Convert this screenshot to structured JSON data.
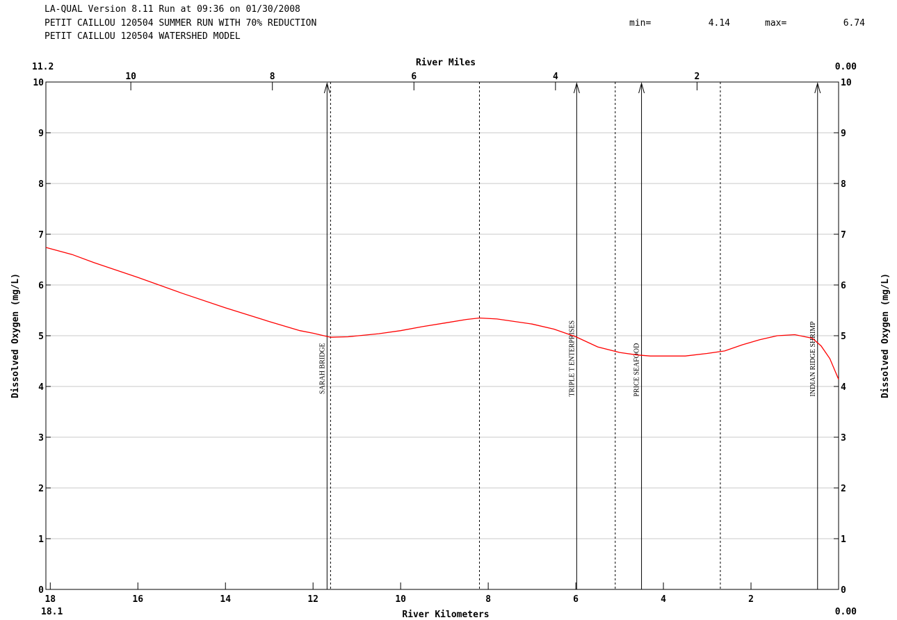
{
  "header": {
    "line1": "LA-QUAL Version 8.11  Run at 09:36 on 01/30/2008",
    "line2": "PETIT CAILLOU 120504 SUMMER RUN WITH 70% REDUCTION",
    "line3": "PETIT CAILLOU 120504 WATERSHED MODEL",
    "min_label": "min=",
    "min_value": "4.14",
    "max_label": "max=",
    "max_value": "6.74"
  },
  "chart_data": {
    "type": "line",
    "title": "",
    "xlabel": "River Kilometers",
    "x2label": "River Miles",
    "ylabel": "Dissolved Oxygen (mg/L)",
    "y2label": "Dissolved Oxygen (mg/L)",
    "xlim": [
      18.1,
      0.0
    ],
    "x2lim": [
      11.2,
      0.0
    ],
    "ylim": [
      0,
      10
    ],
    "x_edge_labels": {
      "left": "18.1",
      "right": "0.00"
    },
    "x2_edge_labels": {
      "left": "11.2",
      "right": "0.00"
    },
    "x_ticks": [
      "18",
      "16",
      "14",
      "12",
      "10",
      "8",
      "6",
      "4",
      "2"
    ],
    "x_tick_values": [
      18,
      16,
      14,
      12,
      10,
      8,
      6,
      4,
      2
    ],
    "x2_ticks": [
      "10",
      "8",
      "6",
      "4",
      "2"
    ],
    "x2_tick_values": [
      10,
      8,
      6,
      4,
      2
    ],
    "y_ticks": [
      "0",
      "1",
      "2",
      "3",
      "4",
      "5",
      "6",
      "7",
      "8",
      "9",
      "10"
    ],
    "y_tick_values": [
      0,
      1,
      2,
      3,
      4,
      5,
      6,
      7,
      8,
      9,
      10
    ],
    "grid": "horizontal",
    "line_color": "#ff0000",
    "series": [
      {
        "x": [
          18.1,
          17.5,
          17.0,
          16.0,
          15.0,
          14.0,
          13.0,
          12.3,
          12.0,
          11.6,
          11.2,
          10.5,
          10.0,
          9.5,
          9.0,
          8.5,
          8.2,
          7.8,
          7.0,
          6.5,
          6.0,
          5.5,
          5.0,
          4.6,
          4.3,
          4.0,
          3.5,
          3.0,
          2.6,
          2.2,
          1.8,
          1.4,
          1.0,
          0.6,
          0.4,
          0.2,
          0.0
        ],
        "y": [
          6.74,
          6.6,
          6.44,
          6.15,
          5.84,
          5.55,
          5.28,
          5.1,
          5.05,
          4.97,
          4.98,
          5.04,
          5.1,
          5.18,
          5.25,
          5.32,
          5.35,
          5.33,
          5.23,
          5.13,
          4.98,
          4.78,
          4.67,
          4.62,
          4.6,
          4.6,
          4.6,
          4.65,
          4.7,
          4.82,
          4.92,
          5.0,
          5.02,
          4.95,
          4.8,
          4.55,
          4.14
        ]
      }
    ],
    "dotted_lines_km": [
      11.6,
      8.2,
      5.1,
      2.7
    ],
    "markers": [
      {
        "label": "SARAH BRIDGE",
        "km": 11.68,
        "label_bottom_y": 3.85
      },
      {
        "label": "TRIPLE T ENTERPRISES",
        "km": 5.98,
        "label_bottom_y": 3.8
      },
      {
        "label": "PRICE SEAFOOD",
        "km": 4.5,
        "label_bottom_y": 3.8
      },
      {
        "label": "INDIAN RIDGE SHRIMP",
        "km": 0.48,
        "label_bottom_y": 3.8
      }
    ]
  }
}
